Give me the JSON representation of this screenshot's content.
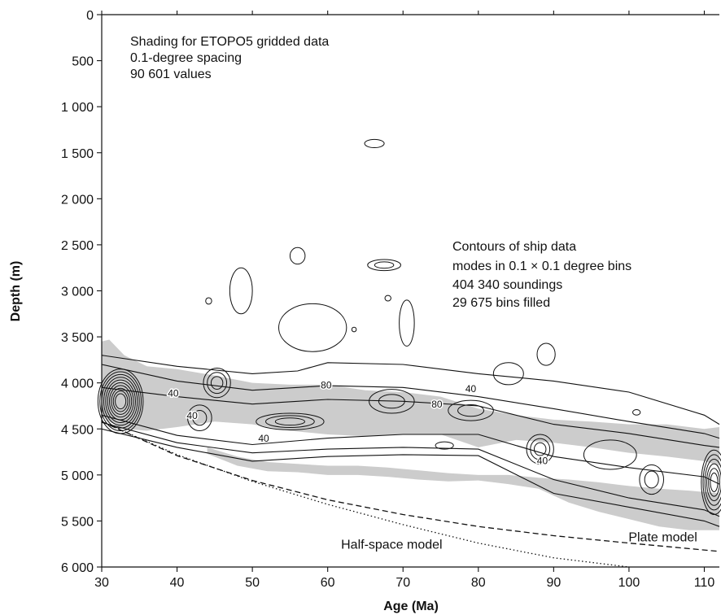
{
  "chart_data": {
    "type": "contour",
    "xlabel": "Age (Ma)",
    "ylabel": "Depth (m)",
    "xlim": [
      30,
      112
    ],
    "ylim": [
      6000,
      0
    ],
    "xticks": [
      30,
      40,
      50,
      60,
      70,
      80,
      90,
      100,
      110
    ],
    "yticks": [
      0,
      500,
      1000,
      1500,
      2000,
      2500,
      3000,
      3500,
      4000,
      4500,
      5000,
      5500,
      6000
    ],
    "ytick_labels": [
      "0",
      "500",
      "1 000",
      "1 500",
      "2 000",
      "2 500",
      "3 000",
      "3 500",
      "4 000",
      "4 500",
      "5 000",
      "5 500",
      "6 000"
    ],
    "annotations": {
      "shading": [
        "Shading for ETOPO5 gridded data",
        "0.1-degree spacing",
        "90 601 values"
      ],
      "contours": [
        "Contours of ship data",
        "modes in 0.1 × 0.1 degree bins",
        "404 340 soundings",
        "29 675 bins filled"
      ]
    },
    "contour_labels": [
      {
        "text": "40",
        "x": 39.5,
        "y": 4150
      },
      {
        "text": "40",
        "x": 42.0,
        "y": 4390
      },
      {
        "text": "80",
        "x": 59.8,
        "y": 4060
      },
      {
        "text": "40",
        "x": 51.5,
        "y": 4640
      },
      {
        "text": "80",
        "x": 74.5,
        "y": 4270
      },
      {
        "text": "40",
        "x": 79.0,
        "y": 4100
      },
      {
        "text": "40",
        "x": 88.5,
        "y": 4880
      }
    ],
    "model_curves": [
      {
        "name": "Plate model",
        "style": "dashed",
        "x": [
          30,
          40,
          50,
          60,
          70,
          80,
          90,
          100,
          110,
          112
        ],
        "y": [
          4420,
          4790,
          5060,
          5270,
          5430,
          5560,
          5660,
          5740,
          5815,
          5830
        ]
      },
      {
        "name": "Half-space model",
        "style": "dotted",
        "x": [
          30,
          40,
          50,
          60,
          70,
          80,
          90,
          100
        ],
        "y": [
          4420,
          4780,
          5070,
          5320,
          5540,
          5740,
          5900,
          6000
        ]
      }
    ],
    "model_labels": [
      {
        "text": "Half-space model",
        "x": 68.5,
        "y": 5800
      },
      {
        "text": "Plate model",
        "x": 104.5,
        "y": 5720
      }
    ],
    "shading_color": "#cccccc",
    "contour_color": "#111111",
    "shading_regions": [
      {
        "x": [
          30,
          31,
          33,
          36,
          40,
          45,
          50,
          55,
          60,
          65,
          70,
          75,
          80,
          85,
          90,
          95,
          100,
          105,
          110,
          112
        ],
        "top": [
          3550,
          3530,
          3700,
          3820,
          3850,
          3920,
          4000,
          4020,
          4020,
          4080,
          4100,
          4150,
          4280,
          4350,
          4400,
          4420,
          4450,
          4450,
          4500,
          4480
        ],
        "bottom": [
          4350,
          4420,
          4500,
          4520,
          4480,
          4420,
          4450,
          4520,
          4560,
          4580,
          4560,
          4560,
          4700,
          4620,
          4650,
          4700,
          4760,
          4800,
          4850,
          4900
        ]
      },
      {
        "x": [
          44,
          48,
          52,
          56,
          60,
          64,
          68,
          72,
          76,
          80,
          84,
          88,
          92,
          96,
          100,
          104,
          108,
          112
        ],
        "top": [
          4700,
          4800,
          4860,
          4880,
          4900,
          4900,
          4920,
          4950,
          4980,
          5000,
          5000,
          5030,
          5050,
          5080,
          5120,
          5150,
          5170,
          5200
        ],
        "bottom": [
          4770,
          4900,
          4960,
          4970,
          5000,
          5000,
          5020,
          5050,
          5070,
          5060,
          5100,
          5150,
          5300,
          5400,
          5480,
          5560,
          5600,
          5600
        ]
      }
    ],
    "contour_lines": [
      {
        "x": [
          30,
          40,
          50,
          56,
          60,
          70,
          80,
          90,
          100,
          110,
          112
        ],
        "y": [
          3700,
          3820,
          3900,
          3870,
          3780,
          3800,
          3900,
          3980,
          4100,
          4350,
          4450
        ]
      },
      {
        "x": [
          30,
          40,
          50,
          60,
          70,
          80,
          90,
          100,
          110,
          112
        ],
        "y": [
          3800,
          3980,
          4080,
          4030,
          4050,
          4150,
          4280,
          4420,
          4550,
          4600
        ]
      },
      {
        "x": [
          30,
          40,
          50,
          60,
          70,
          80,
          90,
          100,
          110,
          112
        ],
        "y": [
          4050,
          4150,
          4230,
          4180,
          4200,
          4250,
          4450,
          4550,
          4680,
          4700
        ]
      },
      {
        "x": [
          30,
          40,
          50,
          60,
          70,
          80,
          90,
          100,
          110,
          112
        ],
        "y": [
          4350,
          4570,
          4670,
          4600,
          4560,
          4560,
          4800,
          4920,
          5020,
          5100
        ]
      },
      {
        "x": [
          30,
          40,
          50,
          60,
          70,
          80,
          90,
          100,
          110,
          112
        ],
        "y": [
          4430,
          4650,
          4760,
          4720,
          4700,
          4720,
          5050,
          5250,
          5380,
          5450
        ]
      },
      {
        "x": [
          30,
          40,
          50,
          60,
          70,
          80,
          90,
          100,
          110,
          112
        ],
        "y": [
          4500,
          4700,
          4850,
          4800,
          4780,
          4790,
          5200,
          5350,
          5500,
          5560
        ]
      }
    ],
    "contour_loops": [
      {
        "cx": 32.5,
        "cy": 4200,
        "rx": 3.0,
        "ry": 350,
        "n": 10
      },
      {
        "cx": 111.3,
        "cy": 5080,
        "rx": 1.7,
        "ry": 350,
        "n": 6
      },
      {
        "cx": 55.0,
        "cy": 4420,
        "rx": 4.5,
        "ry": 90,
        "n": 3
      },
      {
        "cx": 45.3,
        "cy": 4000,
        "rx": 1.8,
        "ry": 160,
        "n": 3
      },
      {
        "cx": 43.0,
        "cy": 4380,
        "rx": 1.6,
        "ry": 140,
        "n": 2
      },
      {
        "cx": 68.5,
        "cy": 4200,
        "rx": 3.0,
        "ry": 130,
        "n": 2
      },
      {
        "cx": 79.0,
        "cy": 4300,
        "rx": 3.0,
        "ry": 110,
        "n": 2
      },
      {
        "cx": 88.2,
        "cy": 4720,
        "rx": 1.8,
        "ry": 160,
        "n": 3
      },
      {
        "cx": 103.0,
        "cy": 5050,
        "rx": 1.6,
        "ry": 160,
        "n": 2
      },
      {
        "cx": 66.2,
        "cy": 1400,
        "rx": 1.3,
        "ry": 45,
        "n": 1
      },
      {
        "cx": 56.0,
        "cy": 2620,
        "rx": 1.0,
        "ry": 90,
        "n": 1
      },
      {
        "cx": 67.5,
        "cy": 2720,
        "rx": 2.2,
        "ry": 60,
        "n": 2
      },
      {
        "cx": 48.5,
        "cy": 3000,
        "rx": 1.5,
        "ry": 250,
        "n": 1
      },
      {
        "cx": 70.5,
        "cy": 3350,
        "rx": 1.0,
        "ry": 250,
        "n": 1
      },
      {
        "cx": 58.0,
        "cy": 3400,
        "rx": 4.5,
        "ry": 260,
        "n": 1
      },
      {
        "cx": 44.2,
        "cy": 3110,
        "rx": 0.4,
        "ry": 35,
        "n": 1
      },
      {
        "cx": 68.0,
        "cy": 3080,
        "rx": 0.4,
        "ry": 30,
        "n": 1
      },
      {
        "cx": 63.5,
        "cy": 3420,
        "rx": 0.3,
        "ry": 25,
        "n": 1
      },
      {
        "cx": 89.0,
        "cy": 3690,
        "rx": 1.2,
        "ry": 120,
        "n": 1
      },
      {
        "cx": 84.0,
        "cy": 3900,
        "rx": 2.0,
        "ry": 120,
        "n": 1
      },
      {
        "cx": 101.0,
        "cy": 4320,
        "rx": 0.5,
        "ry": 30,
        "n": 1
      },
      {
        "cx": 97.5,
        "cy": 4780,
        "rx": 3.5,
        "ry": 160,
        "n": 1
      },
      {
        "cx": 75.5,
        "cy": 4680,
        "rx": 1.2,
        "ry": 40,
        "n": 1
      }
    ]
  }
}
